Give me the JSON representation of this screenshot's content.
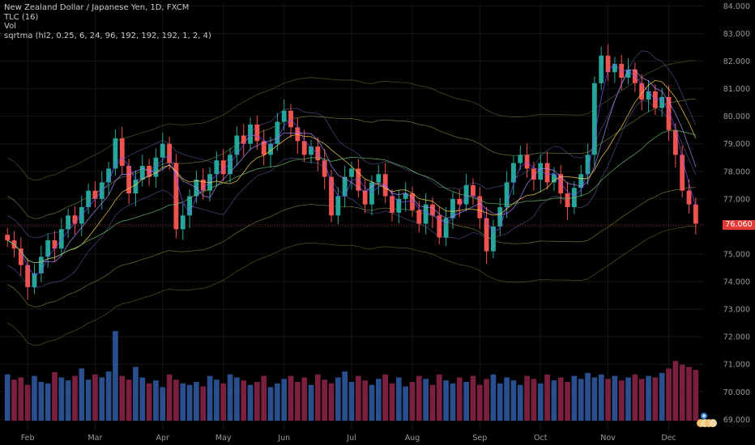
{
  "legend": {
    "line1": "New Zealand Dollar / Japanese Yen, 1D, FXCM",
    "line2": "TLC (16)",
    "line3": "Vol",
    "line4": "sqrtma (hl2, 0.25, 6, 24, 96, 192, 192, 192, 1, 2, 4)"
  },
  "colors": {
    "background": "#000000",
    "up": "#26a69a",
    "down": "#ef5350",
    "vol_up": "#2a4f8f",
    "vol_down": "#7a1f3d",
    "grid": "#161616",
    "axis_text": "#9a9a9a",
    "price_tag": "#e53935"
  },
  "chart_data": {
    "type": "candlestick",
    "x_axis": {
      "ticks": [
        "Feb",
        "Mar",
        "Apr",
        "May",
        "Jun",
        "Jul",
        "Aug",
        "Sep",
        "Oct",
        "Nov",
        "Dec"
      ]
    },
    "y_axis": {
      "ticks": [
        "84.000",
        "83.000",
        "82.000",
        "81.000",
        "80.000",
        "79.000",
        "78.000",
        "77.000",
        "76.000",
        "75.000",
        "74.000",
        "73.000",
        "72.000",
        "71.000",
        "70.000",
        "69.000"
      ],
      "range": [
        68.6,
        84.1
      ]
    },
    "last_price": "76.060",
    "close_series": [
      75.5,
      75.2,
      74.6,
      73.8,
      74.3,
      74.9,
      75.5,
      75.2,
      75.9,
      76.4,
      76.1,
      76.7,
      77.3,
      77.0,
      77.6,
      78.1,
      79.2,
      78.2,
      77.2,
      77.7,
      78.2,
      77.8,
      78.5,
      79.0,
      78.3,
      75.9,
      76.4,
      77.1,
      77.7,
      77.3,
      77.9,
      78.4,
      77.9,
      78.6,
      79.3,
      79.0,
      79.7,
      79.1,
      78.6,
      79.0,
      79.8,
      80.2,
      79.6,
      79.1,
      78.6,
      78.9,
      78.4,
      77.8,
      76.4,
      77.1,
      77.8,
      78.1,
      77.3,
      76.8,
      77.6,
      77.9,
      77.1,
      76.5,
      77.0,
      77.2,
      76.6,
      76.1,
      76.8,
      76.4,
      75.6,
      76.3,
      77.0,
      76.8,
      77.5,
      77.1,
      76.3,
      75.1,
      76.0,
      76.7,
      77.6,
      78.3,
      78.6,
      78.1,
      77.7,
      78.3,
      77.6,
      77.9,
      77.2,
      76.7,
      77.4,
      77.9,
      78.6,
      81.2,
      82.2,
      81.6,
      81.9,
      81.4,
      81.7,
      81.2,
      80.6,
      80.9,
      80.3,
      80.7,
      79.5,
      78.6,
      77.3,
      76.8,
      76.1
    ],
    "volume_series": [
      62,
      55,
      58,
      48,
      60,
      52,
      50,
      65,
      58,
      54,
      60,
      70,
      55,
      62,
      58,
      66,
      120,
      60,
      55,
      72,
      58,
      50,
      54,
      45,
      62,
      55,
      50,
      48,
      52,
      46,
      60,
      55,
      50,
      62,
      58,
      54,
      48,
      52,
      60,
      45,
      50,
      56,
      60,
      52,
      58,
      48,
      62,
      55,
      50,
      58,
      66,
      52,
      60,
      54,
      48,
      56,
      62,
      50,
      58,
      46,
      52,
      60,
      56,
      48,
      62,
      54,
      50,
      58,
      52,
      60,
      48,
      56,
      62,
      50,
      58,
      54,
      48,
      60,
      56,
      50,
      62,
      54,
      58,
      52,
      60,
      56,
      64,
      58,
      62,
      56,
      60,
      54,
      58,
      62,
      56,
      60,
      58,
      64,
      70,
      80,
      75,
      72,
      68
    ]
  }
}
